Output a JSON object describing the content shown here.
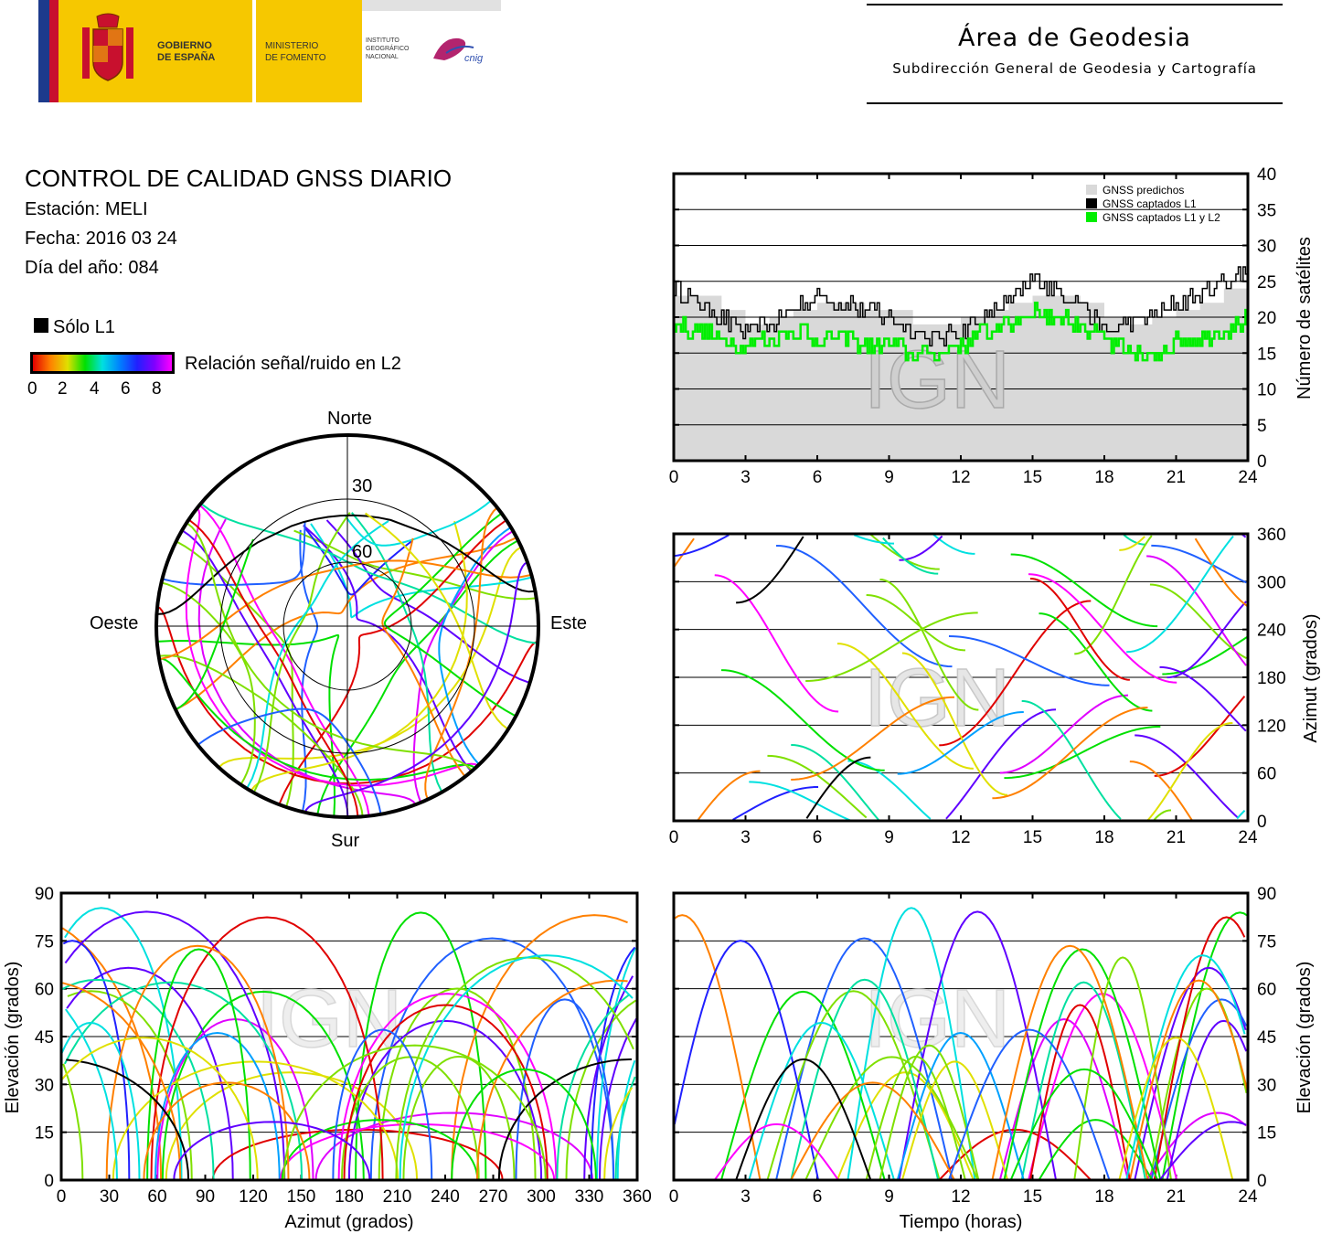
{
  "header": {
    "logo_gov": "GOBIERNO DE ESPAÑA",
    "logo_gov_l1": "GOBIERNO",
    "logo_gov_l2": "DE ESPAÑA",
    "logo_min_l1": "MINISTERIO",
    "logo_min_l2": "DE FOMENTO",
    "logo_ign_l1": "INSTITUTO",
    "logo_ign_l2": "GEOGRÁFICO",
    "logo_ign_l3": "NACIONAL",
    "logo_cnig": "cnig",
    "area_title": "Área de Geodesia",
    "area_subtitle": "Subdirección General de Geodesia y Cartografía"
  },
  "report": {
    "title": "CONTROL DE CALIDAD GNSS DIARIO",
    "station": "Estación: MELI",
    "date": "Fecha: 2016 03 24",
    "doy": "Día del año: 084"
  },
  "legend": {
    "l1_only": "Sólo L1",
    "snr_label": "Relación señal/ruido en L2",
    "snr_ticks": [
      "0",
      "2",
      "4",
      "6",
      "8"
    ],
    "colors": {
      "l1_only": "#000000",
      "predicted": "#d9d9d9",
      "l2": "#00ee00"
    }
  },
  "watermark": "IGN",
  "chart_data": [
    {
      "id": "skyplot",
      "type": "scatter",
      "title": "",
      "labels": {
        "north": "Norte",
        "south": "Sur",
        "west": "Oeste",
        "east": "Este"
      },
      "rings": [
        "30",
        "60"
      ],
      "ring_values": [
        30,
        60
      ],
      "mask_region": "north, elevation < 30 deg"
    },
    {
      "id": "satellite-count",
      "type": "line",
      "xlim": [
        0,
        24
      ],
      "ylim": [
        0,
        40
      ],
      "xticks": [
        "0",
        "3",
        "6",
        "9",
        "12",
        "15",
        "18",
        "21",
        "24"
      ],
      "yticks": [
        "0",
        "5",
        "10",
        "15",
        "20",
        "25",
        "30",
        "35",
        "40"
      ],
      "ylabel": "Número de satélites",
      "legend": [
        "GNSS predichos",
        "GNSS captados L1",
        "GNSS captados L1 y L2"
      ],
      "legend_position": "top-right",
      "series": [
        {
          "name": "GNSS predichos",
          "x": [
            0,
            1,
            2,
            3,
            4,
            5,
            6,
            7,
            8,
            9,
            10,
            11,
            12,
            13,
            14,
            15,
            16,
            17,
            18,
            19,
            20,
            21,
            22,
            23,
            24
          ],
          "values": [
            23,
            23,
            21,
            19,
            20,
            21,
            22,
            22,
            21,
            21,
            19,
            19,
            20,
            21,
            22,
            23,
            23,
            22,
            20,
            19,
            20,
            21,
            22,
            24,
            25
          ]
        },
        {
          "name": "GNSS captados L1",
          "x": [
            0,
            1,
            2,
            3,
            4,
            5,
            6,
            7,
            8,
            9,
            10,
            11,
            12,
            13,
            14,
            15,
            16,
            17,
            18,
            19,
            20,
            21,
            22,
            23,
            24
          ],
          "values": [
            24,
            22,
            20,
            18,
            19,
            21,
            23,
            22,
            21,
            20,
            18,
            17,
            18,
            20,
            22,
            25,
            24,
            22,
            18,
            19,
            20,
            22,
            23,
            25,
            26
          ]
        },
        {
          "name": "GNSS captados L1 y L2",
          "x": [
            0,
            1,
            2,
            3,
            4,
            5,
            6,
            7,
            8,
            9,
            10,
            11,
            12,
            13,
            14,
            15,
            16,
            17,
            18,
            19,
            20,
            21,
            22,
            23,
            24
          ],
          "values": [
            19,
            18,
            17,
            16,
            17,
            18,
            17,
            17,
            16,
            16,
            15,
            15,
            16,
            18,
            19,
            21,
            20,
            19,
            17,
            15,
            14,
            17,
            17,
            18,
            20
          ]
        }
      ]
    },
    {
      "id": "azimuth-time",
      "type": "scatter",
      "xlim": [
        0,
        24
      ],
      "ylim": [
        0,
        360
      ],
      "xticks": [
        "0",
        "3",
        "6",
        "9",
        "12",
        "15",
        "18",
        "21",
        "24"
      ],
      "yticks": [
        "0",
        "60",
        "120",
        "180",
        "240",
        "300",
        "360"
      ],
      "ylabel": "Azimut (grados)"
    },
    {
      "id": "elevation-azimuth",
      "type": "scatter",
      "xlim": [
        0,
        360
      ],
      "ylim": [
        0,
        90
      ],
      "xticks": [
        "0",
        "30",
        "60",
        "90",
        "120",
        "150",
        "180",
        "210",
        "240",
        "270",
        "300",
        "330",
        "360"
      ],
      "yticks": [
        "0",
        "15",
        "30",
        "45",
        "60",
        "75",
        "90"
      ],
      "xlabel": "Azimut (grados)",
      "ylabel": "Elevación (grados)"
    },
    {
      "id": "elevation-time",
      "type": "scatter",
      "xlim": [
        0,
        24
      ],
      "ylim": [
        0,
        90
      ],
      "xticks": [
        "0",
        "3",
        "6",
        "9",
        "12",
        "15",
        "18",
        "21",
        "24"
      ],
      "yticks": [
        "0",
        "15",
        "30",
        "45",
        "60",
        "75",
        "90"
      ],
      "xlabel": "Tiempo (horas)",
      "ylabel": "Elevación (grados)"
    }
  ]
}
